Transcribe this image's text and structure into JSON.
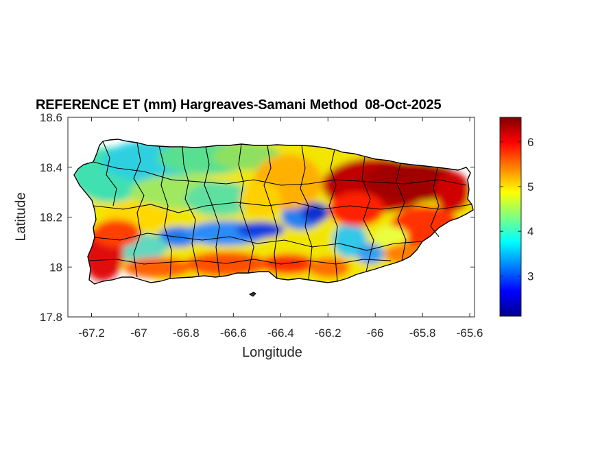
{
  "map": {
    "title": "REFERENCE ET (mm) Hargreaves-Samani Method  08-Oct-2025",
    "x_label": "Longitude",
    "y_label": "Latitude",
    "x_ticks": [
      "-67.2",
      "-67",
      "-66.8",
      "-66.6",
      "-66.4",
      "-66.2",
      "-66",
      "-65.8",
      "-65.6"
    ],
    "y_ticks": [
      "18.6",
      "18.4",
      "18.2",
      "18",
      "17.8"
    ],
    "x_range": [
      -67.3,
      -65.58
    ],
    "y_range": [
      17.8,
      18.6
    ],
    "colorbar": {
      "colormap": "jet",
      "min": 2.1,
      "max": 6.55,
      "ticks": [
        "6",
        "5",
        "4",
        "3"
      ],
      "tick_values": [
        6,
        5,
        4,
        3
      ]
    },
    "colors": {
      "boundary": "#000000",
      "axes": "#262626",
      "background": "#ffffff"
    }
  }
}
